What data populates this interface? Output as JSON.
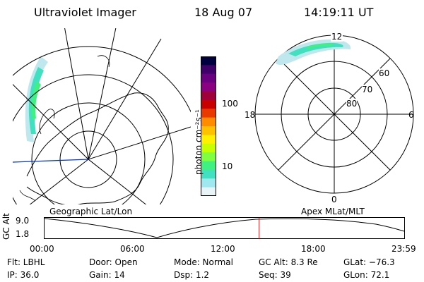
{
  "header": {
    "title": "Ultraviolet Imager",
    "date": "18 Aug 07",
    "time": "14:19:11 UT"
  },
  "colorbar": {
    "unit_label": "photon cm⁻²s⁻¹",
    "ticks": [
      "100",
      "10"
    ],
    "colors": [
      "#000040",
      "#40006a",
      "#6a0080",
      "#8a0080",
      "#a0003a",
      "#c80000",
      "#e83a00",
      "#ff8c00",
      "#ffc000",
      "#fff000",
      "#c8ff00",
      "#80ff40",
      "#40f080",
      "#40e0c0",
      "#a0e8f0",
      "#e8f4f8"
    ]
  },
  "polar_plot": {
    "labels": {
      "top": "12",
      "left": "18",
      "right": "6",
      "bottom": "0"
    },
    "rings": [
      "60",
      "70",
      "80"
    ]
  },
  "timeline": {
    "left_title": "Geographic Lat/Lon",
    "right_title": "Apex MLat/MLT",
    "ylabel": "GC Alt",
    "y_ticks": [
      "9.0",
      "1.8"
    ],
    "x_ticks": [
      "00:00",
      "06:00",
      "12:00",
      "18:00",
      "23:59"
    ],
    "marker_time_hours": 14.32,
    "marker_color": "#ff0000"
  },
  "status": {
    "flt": "Flt: LBHL",
    "ip": "IP: 36.0",
    "door": "Door: Open",
    "gain": "Gain: 14",
    "mode": "Mode: Normal",
    "dsp": "Dsp:     1.2",
    "gc_alt": "GC Alt: 8.3 Re",
    "seq": "Seq: 39",
    "glat": "GLat: −76.3",
    "glon": "GLon:  72.1"
  }
}
